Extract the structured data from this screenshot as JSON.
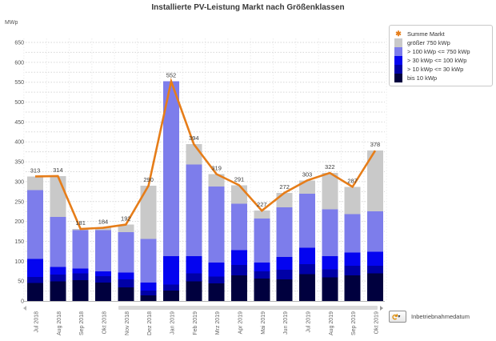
{
  "chart": {
    "title": "Installierte PV-Leistung Markt nach Größenklassen",
    "y_unit": "MWp"
  },
  "legend": {
    "items": [
      {
        "label": "Summe Markt",
        "color": "#e67d19",
        "icon": "star-marker"
      },
      {
        "label": "größer 750 kWp",
        "color": "#c9c9c9"
      },
      {
        "label": "> 100 kWp <= 750 kWp",
        "color": "#7d7deb"
      },
      {
        "label": "> 30 kWp <= 100 kWp",
        "color": "#0404f0"
      },
      {
        "label": "> 10 kWp <= 30 kWp",
        "color": "#0000a6"
      },
      {
        "label": "bis 10 kWp",
        "color": "#00003e"
      }
    ]
  },
  "footer": {
    "button_label": "Inbetriebnahmedatum"
  },
  "chart_data": {
    "type": "bar",
    "subtype": "stacked-bars-with-total-line",
    "title": "Installierte PV-Leistung Markt nach Größenklassen",
    "ylabel": "MWp",
    "xlabel": "Inbetriebnahmedatum",
    "ylim": [
      0,
      650
    ],
    "ytick_step": 50,
    "grid_step": 25,
    "grid": "dashed",
    "legend_position": "top-right",
    "categories": [
      "Jul 2018",
      "Aug 2018",
      "Sep 2018",
      "Okt 2018",
      "Nov 2018",
      "Dez 2018",
      "Jan 2019",
      "Feb 2019",
      "Mrz 2019",
      "Apr 2019",
      "Mai 2019",
      "Jun 2019",
      "Jul 2019",
      "Aug 2019",
      "Sep 2019",
      "Okt 2019"
    ],
    "series": [
      {
        "name": "bis 10 kWp",
        "color": "#00003e",
        "values": [
          45,
          49,
          52,
          46,
          34,
          14,
          26,
          49,
          44,
          64,
          56,
          54,
          67,
          59,
          64,
          69
        ]
      },
      {
        "name": "> 10 kWp <= 30 kWp",
        "color": "#0000a6",
        "values": [
          15,
          17,
          17,
          16,
          20,
          12,
          15,
          20,
          17,
          27,
          18,
          24,
          26,
          20,
          25,
          20
        ]
      },
      {
        "name": "> 30 kWp <= 100 kWp",
        "color": "#0404f0",
        "values": [
          46,
          20,
          13,
          12,
          17,
          20,
          72,
          44,
          36,
          37,
          23,
          33,
          41,
          34,
          33,
          35
        ]
      },
      {
        "name": "> 100 kWp <= 750 kWp",
        "color": "#7d7deb",
        "values": [
          173,
          125,
          96,
          104,
          102,
          110,
          439,
          230,
          191,
          117,
          110,
          124,
          136,
          117,
          96,
          101
        ]
      },
      {
        "name": "größer 750 kWp",
        "color": "#c9c9c9",
        "values": [
          34,
          103,
          3,
          6,
          19,
          134,
          0,
          51,
          31,
          46,
          20,
          37,
          33,
          92,
          69,
          153
        ]
      }
    ],
    "line_series": {
      "name": "Summe Markt",
      "color": "#e67d19",
      "values": [
        313,
        314,
        181,
        184,
        192,
        290,
        552,
        394,
        319,
        291,
        227,
        272,
        303,
        322,
        287,
        378
      ]
    }
  }
}
